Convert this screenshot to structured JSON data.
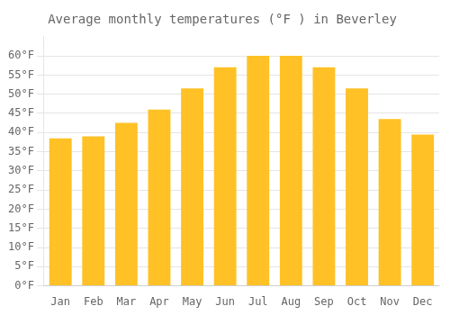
{
  "chart_data": {
    "type": "bar",
    "title": "Average monthly temperatures (°F ) in Beverley",
    "categories": [
      "Jan",
      "Feb",
      "Mar",
      "Apr",
      "May",
      "Jun",
      "Jul",
      "Aug",
      "Sep",
      "Oct",
      "Nov",
      "Dec"
    ],
    "values": [
      38.5,
      39.0,
      42.5,
      46.0,
      51.5,
      57.0,
      60.0,
      60.0,
      57.0,
      51.5,
      43.5,
      39.5
    ],
    "color": "#FFC125",
    "ylim": [
      0,
      65
    ],
    "yticks": [
      {
        "value": 0,
        "label": "0°F"
      },
      {
        "value": 5,
        "label": "5°F"
      },
      {
        "value": 10,
        "label": "10°F"
      },
      {
        "value": 15,
        "label": "15°F"
      },
      {
        "value": 20,
        "label": "20°F"
      },
      {
        "value": 25,
        "label": "25°F"
      },
      {
        "value": 30,
        "label": "30°F"
      },
      {
        "value": 35,
        "label": "35°F"
      },
      {
        "value": 40,
        "label": "40°F"
      },
      {
        "value": 45,
        "label": "45°F"
      },
      {
        "value": 50,
        "label": "50°F"
      },
      {
        "value": 55,
        "label": "55°F"
      },
      {
        "value": 60,
        "label": "60°F"
      }
    ],
    "grid": true
  }
}
